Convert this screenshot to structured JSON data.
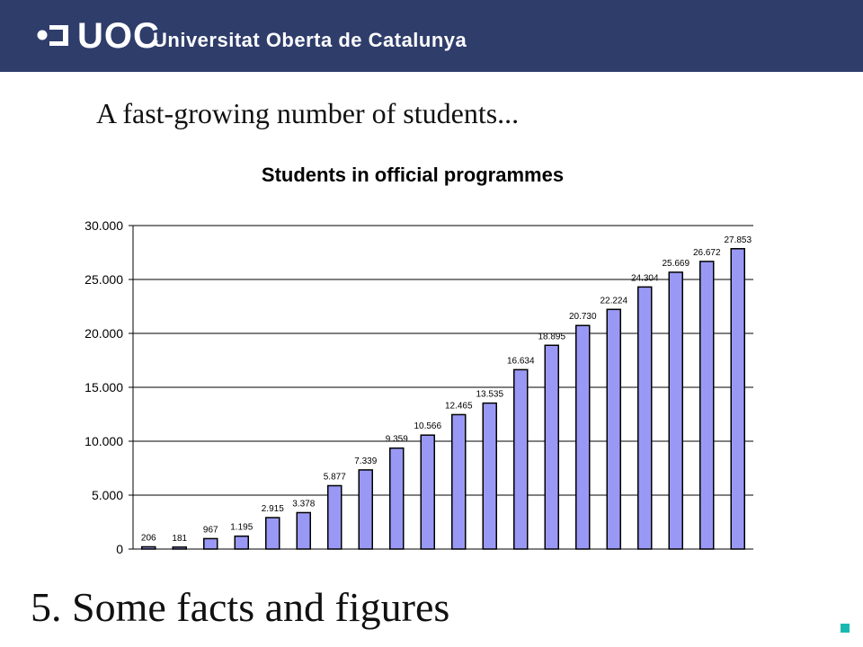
{
  "header": {
    "logo_short": "UOC",
    "logo_full": "Universitat Oberta de Catalunya"
  },
  "subtitle": "A fast-growing number of students...",
  "slide_title": "5. Some facts and figures",
  "colors": {
    "header_bg": "#2f3d6b",
    "bar_fill": "#9999f5",
    "accent": "#18b8b0"
  },
  "chart_data": {
    "type": "bar",
    "title": "Students in official programmes",
    "xlabel": "",
    "ylabel": "",
    "ylim": [
      0,
      30000
    ],
    "yticks": [
      0,
      5000,
      10000,
      15000,
      20000,
      25000,
      30000
    ],
    "ytick_labels": [
      "0",
      "5.000",
      "10.000",
      "15.000",
      "20.000",
      "25.000",
      "30.000"
    ],
    "grid": true,
    "legend": "none",
    "values": [
      206,
      181,
      967,
      1195,
      2915,
      3378,
      5877,
      7339,
      9359,
      10566,
      12465,
      13535,
      16634,
      18895,
      20730,
      22224,
      24304,
      25669,
      26672,
      27853
    ],
    "value_labels": [
      "206",
      "181",
      "967",
      "1.195",
      "2.915",
      "3.378",
      "5.877",
      "7.339",
      "9.359",
      "10.566",
      "12.465",
      "13.535",
      "16.634",
      "18.895",
      "20.730",
      "22.224",
      "24.304",
      "25.669",
      "26.672",
      "27.853"
    ]
  }
}
